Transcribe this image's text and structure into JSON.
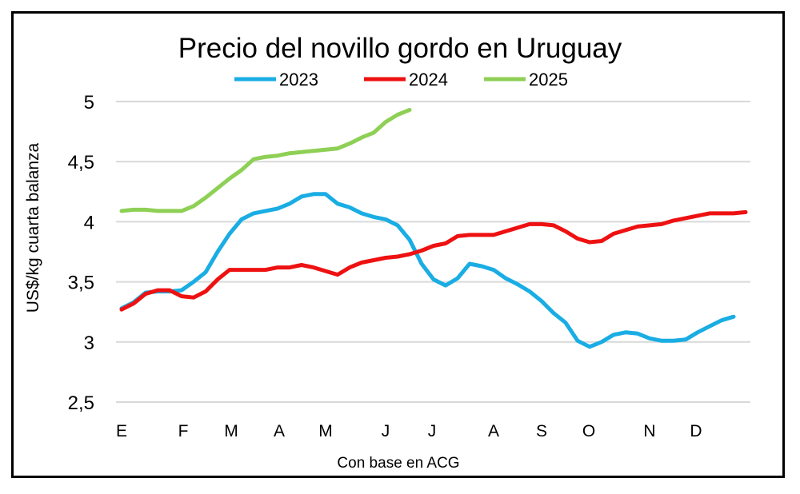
{
  "chart_data": {
    "type": "line",
    "title": "Precio del novillo gordo en Uruguay",
    "xlabel": "Con base en ACG",
    "ylabel": "US$/kg cuarta balanza",
    "ylim": [
      2.5,
      5
    ],
    "yticks": [
      "2,5",
      "3",
      "3,5",
      "4",
      "4,5",
      "5"
    ],
    "ytick_values": [
      2.5,
      3,
      3.5,
      4,
      4.5,
      5
    ],
    "xtick_labels": [
      "E",
      "F",
      "M",
      "A",
      "M",
      "J",
      "J",
      "A",
      "S",
      "O",
      "N",
      "D"
    ],
    "x_unit": "week",
    "grid": "horizontal",
    "legend_placement": "top",
    "series": [
      {
        "name": "2023",
        "color": "#1AADE4",
        "values": [
          3.28,
          3.33,
          3.41,
          3.42,
          3.42,
          3.43,
          3.5,
          3.58,
          3.75,
          3.9,
          4.02,
          4.07,
          4.09,
          4.11,
          4.15,
          4.21,
          4.23,
          4.23,
          4.15,
          4.12,
          4.07,
          4.04,
          4.02,
          3.97,
          3.85,
          3.65,
          3.52,
          3.47,
          3.53,
          3.65,
          3.63,
          3.6,
          3.53,
          3.48,
          3.42,
          3.34,
          3.24,
          3.16,
          3.01,
          2.96,
          3.0,
          3.06,
          3.08,
          3.07,
          3.03,
          3.01,
          3.01,
          3.02,
          3.08,
          3.13,
          3.18,
          3.21
        ]
      },
      {
        "name": "2024",
        "color": "#EE1111",
        "values": [
          3.27,
          3.32,
          3.4,
          3.43,
          3.43,
          3.38,
          3.37,
          3.42,
          3.52,
          3.6,
          3.6,
          3.6,
          3.6,
          3.62,
          3.62,
          3.64,
          3.62,
          3.59,
          3.56,
          3.62,
          3.66,
          3.68,
          3.7,
          3.71,
          3.73,
          3.76,
          3.8,
          3.82,
          3.88,
          3.89,
          3.89,
          3.89,
          3.92,
          3.95,
          3.98,
          3.98,
          3.97,
          3.92,
          3.86,
          3.83,
          3.84,
          3.9,
          3.93,
          3.96,
          3.97,
          3.98,
          4.01,
          4.03,
          4.05,
          4.07,
          4.07,
          4.07,
          4.08
        ]
      },
      {
        "name": "2025",
        "color": "#8ED055",
        "values": [
          4.09,
          4.1,
          4.1,
          4.09,
          4.09,
          4.09,
          4.13,
          4.2,
          4.28,
          4.36,
          4.43,
          4.52,
          4.54,
          4.55,
          4.57,
          4.58,
          4.59,
          4.6,
          4.61,
          4.65,
          4.7,
          4.74,
          4.83,
          4.89,
          4.93
        ]
      }
    ]
  }
}
